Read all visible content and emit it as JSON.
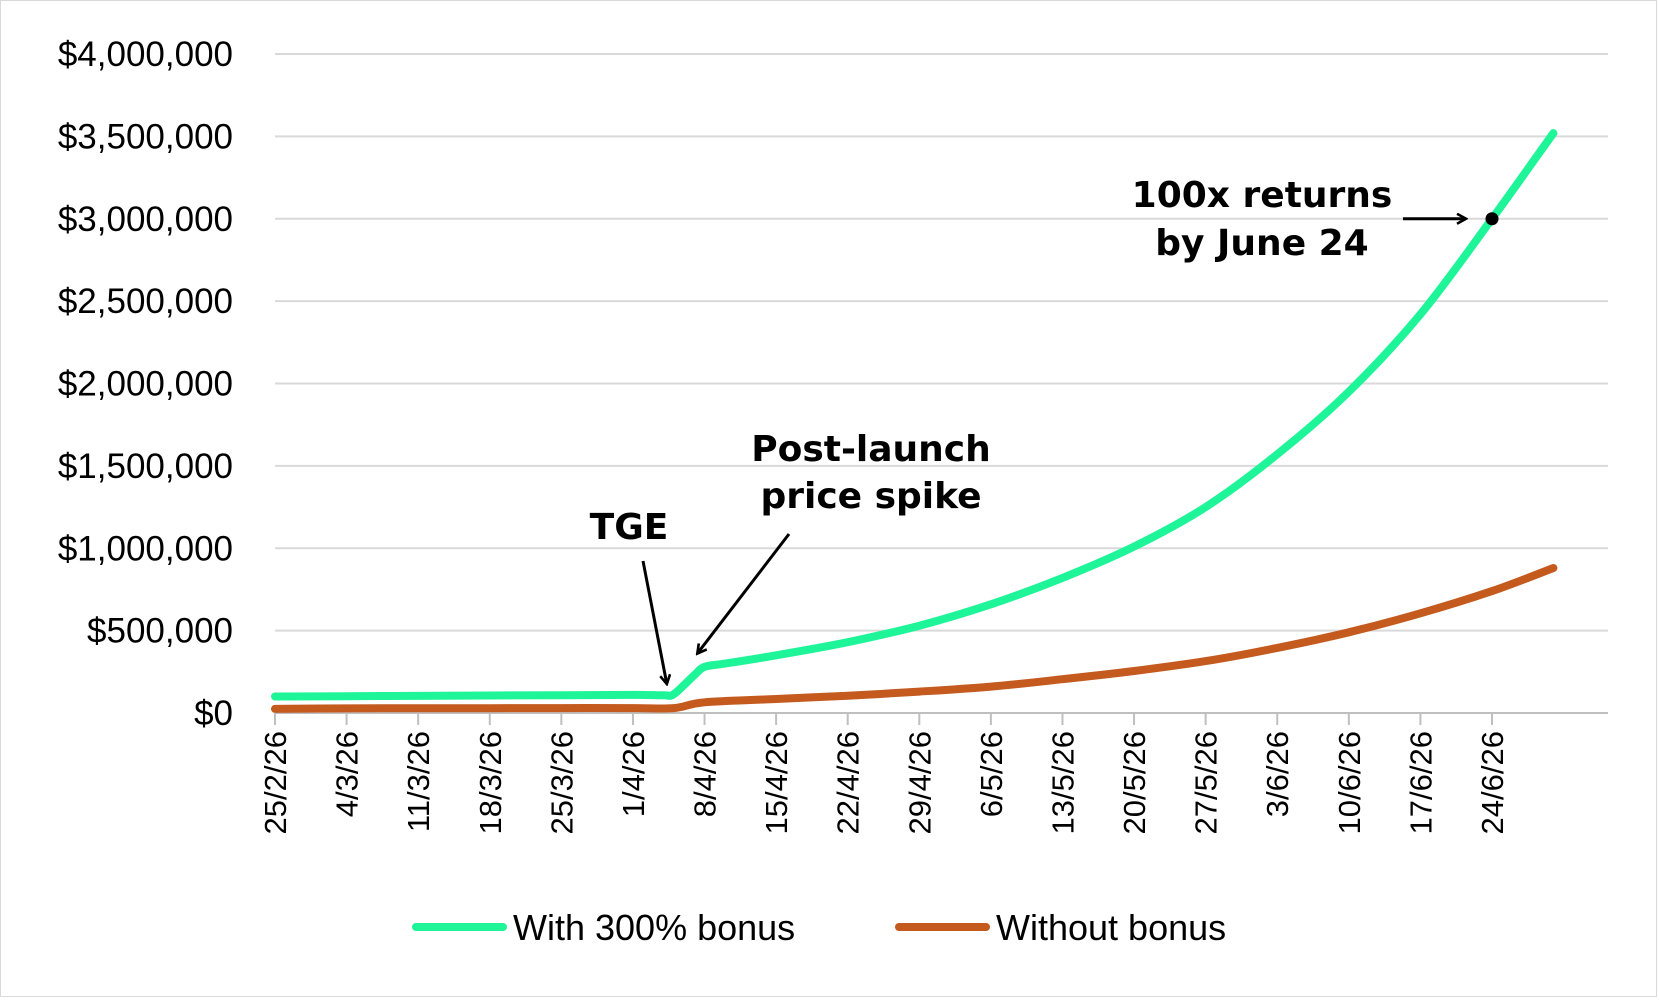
{
  "chart_data": {
    "type": "line",
    "title": "",
    "xlabel": "",
    "ylabel": "",
    "x_tick_labels": [
      "25/2/26",
      "4/3/26",
      "11/3/26",
      "18/3/26",
      "25/3/26",
      "1/4/26",
      "8/4/26",
      "15/4/26",
      "22/4/26",
      "29/4/26",
      "6/5/26",
      "13/5/26",
      "20/5/26",
      "27/5/26",
      "3/6/26",
      "10/6/26",
      "17/6/26",
      "24/6/26"
    ],
    "y_tick_labels": [
      "$0",
      "$500,000",
      "$1,000,000",
      "$1,500,000",
      "$2,000,000",
      "$2,500,000",
      "$3,000,000",
      "$3,500,000",
      "$4,000,000"
    ],
    "ylim": [
      0,
      4000000
    ],
    "xlim": [
      "2026-02-25",
      "2026-06-30"
    ],
    "grid": true,
    "legend_position": "bottom",
    "series": [
      {
        "name": "With 300% bonus",
        "color": "#1ef598",
        "points": [
          {
            "x": "2026-02-25",
            "y": 100000
          },
          {
            "x": "2026-03-04",
            "y": 102000
          },
          {
            "x": "2026-03-11",
            "y": 104000
          },
          {
            "x": "2026-03-18",
            "y": 106000
          },
          {
            "x": "2026-03-25",
            "y": 108000
          },
          {
            "x": "2026-04-01",
            "y": 110000
          },
          {
            "x": "2026-04-04",
            "y": 108000
          },
          {
            "x": "2026-04-05",
            "y": 115000
          },
          {
            "x": "2026-04-07",
            "y": 230000
          },
          {
            "x": "2026-04-08",
            "y": 280000
          },
          {
            "x": "2026-04-10",
            "y": 300000
          },
          {
            "x": "2026-04-15",
            "y": 350000
          },
          {
            "x": "2026-04-22",
            "y": 430000
          },
          {
            "x": "2026-04-29",
            "y": 530000
          },
          {
            "x": "2026-05-06",
            "y": 660000
          },
          {
            "x": "2026-05-13",
            "y": 820000
          },
          {
            "x": "2026-05-20",
            "y": 1010000
          },
          {
            "x": "2026-05-27",
            "y": 1250000
          },
          {
            "x": "2026-06-03",
            "y": 1570000
          },
          {
            "x": "2026-06-10",
            "y": 1950000
          },
          {
            "x": "2026-06-17",
            "y": 2420000
          },
          {
            "x": "2026-06-24",
            "y": 3000000
          },
          {
            "x": "2026-06-30",
            "y": 3520000
          }
        ]
      },
      {
        "name": "Without bonus",
        "color": "#c45a1e",
        "points": [
          {
            "x": "2026-02-25",
            "y": 25000
          },
          {
            "x": "2026-03-04",
            "y": 28000
          },
          {
            "x": "2026-03-11",
            "y": 29000
          },
          {
            "x": "2026-03-18",
            "y": 29000
          },
          {
            "x": "2026-03-25",
            "y": 30000
          },
          {
            "x": "2026-04-01",
            "y": 30000
          },
          {
            "x": "2026-04-05",
            "y": 30000
          },
          {
            "x": "2026-04-08",
            "y": 65000
          },
          {
            "x": "2026-04-15",
            "y": 85000
          },
          {
            "x": "2026-04-22",
            "y": 105000
          },
          {
            "x": "2026-04-29",
            "y": 130000
          },
          {
            "x": "2026-05-06",
            "y": 160000
          },
          {
            "x": "2026-05-13",
            "y": 205000
          },
          {
            "x": "2026-05-20",
            "y": 255000
          },
          {
            "x": "2026-05-27",
            "y": 315000
          },
          {
            "x": "2026-06-03",
            "y": 395000
          },
          {
            "x": "2026-06-10",
            "y": 490000
          },
          {
            "x": "2026-06-17",
            "y": 605000
          },
          {
            "x": "2026-06-24",
            "y": 740000
          },
          {
            "x": "2026-06-30",
            "y": 880000
          }
        ]
      }
    ],
    "annotations": [
      {
        "id": "tge",
        "lines": [
          "TGE"
        ],
        "x": "2026-04-05",
        "y": 115000
      },
      {
        "id": "spike",
        "lines": [
          "Post-launch",
          "price spike"
        ],
        "x": "2026-04-07",
        "y": 300000
      },
      {
        "id": "returns",
        "lines": [
          "100x returns",
          "by June 24"
        ],
        "x": "2026-06-24",
        "y": 3000000
      }
    ]
  }
}
